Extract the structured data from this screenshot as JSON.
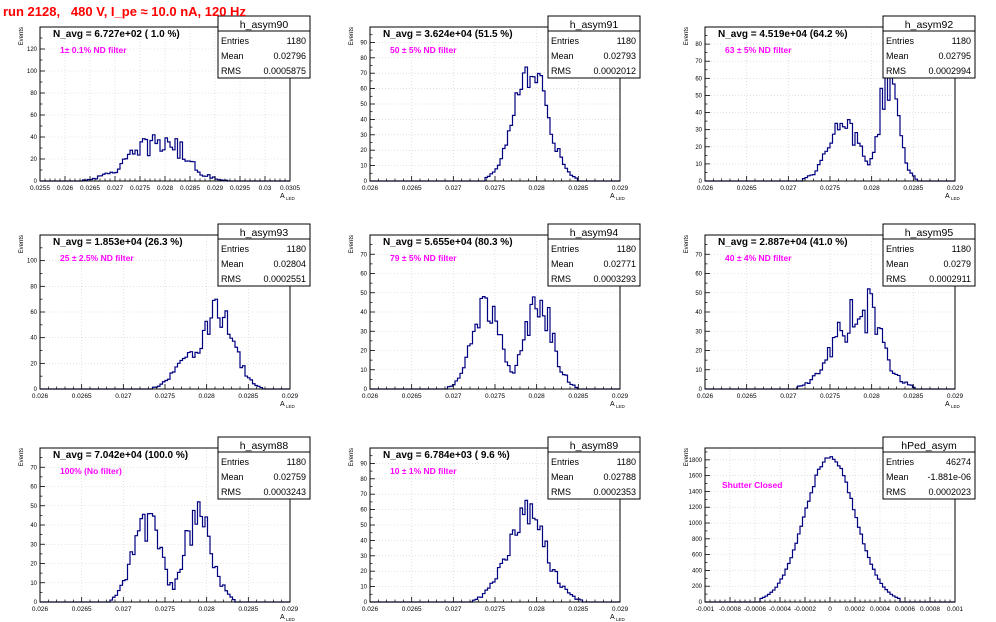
{
  "run_title": "run 2128,   480 V, I_pe ≈ 10.0 nA, 120 Hz",
  "y_axis_label": "Events",
  "stats_labels": {
    "entries": "Entries",
    "mean": "Mean",
    "rms": "RMS"
  },
  "colors": {
    "title": "#ff0000",
    "histogram": "#000080",
    "filter_label": "#ff00ff",
    "grid": "#cfcfcf",
    "frame": "#000000"
  },
  "chart_data": [
    {
      "type": "histogram",
      "name": "h_asym90",
      "n_avg_label": "N_avg = 6.727e+02 ( 1.0 %)",
      "filter_label": "1± 0.1% ND filter",
      "stats": {
        "entries": "1180",
        "mean": "0.02796",
        "rms": "0.0005875"
      },
      "xlim": [
        0.0255,
        0.0305
      ],
      "ylim": [
        0,
        140
      ],
      "x_ticks": [
        0.0255,
        0.026,
        0.0265,
        0.027,
        0.0275,
        0.028,
        0.0285,
        0.029,
        0.0295,
        0.03,
        0.0305
      ],
      "x_tick_labels": [
        "0.0255",
        "0.026",
        "0.0265",
        "0.027",
        "0.0275",
        "0.028",
        "0.0285",
        "0.029",
        "0.0295",
        "0.03",
        "0.0305"
      ],
      "y_ticks": [
        0,
        20,
        40,
        60,
        80,
        100,
        120
      ],
      "y_tick_labels": [
        "0",
        "20",
        "40",
        "60",
        "80",
        "100",
        "120"
      ],
      "xlabel": "A",
      "xlabel_sub": "LED",
      "mean": 0.02796,
      "sigma": 0.0005875,
      "peak": 42,
      "shape": "broad",
      "noise": 0.35
    },
    {
      "type": "histogram",
      "name": "h_asym91",
      "n_avg_label": "N_avg = 3.624e+04 (51.5 %)",
      "filter_label": "50 ± 5% ND filter",
      "stats": {
        "entries": "1180",
        "mean": "0.02793",
        "rms": "0.0002012"
      },
      "xlim": [
        0.026,
        0.029
      ],
      "ylim": [
        0,
        100
      ],
      "x_ticks": [
        0.026,
        0.0265,
        0.027,
        0.0275,
        0.028,
        0.0285,
        0.029
      ],
      "x_tick_labels": [
        "0.026",
        "0.0265",
        "0.027",
        "0.0275",
        "0.028",
        "0.0285",
        "0.029"
      ],
      "y_ticks": [
        0,
        10,
        20,
        30,
        40,
        50,
        60,
        70,
        80,
        90
      ],
      "y_tick_labels": [
        "0",
        "10",
        "20",
        "30",
        "40",
        "50",
        "60",
        "70",
        "80",
        "90"
      ],
      "xlabel": "A",
      "xlabel_sub": "LED",
      "mean": 0.02793,
      "sigma": 0.0002012,
      "peak": 74,
      "shape": "gauss",
      "noise": 0.18
    },
    {
      "type": "histogram",
      "name": "h_asym92",
      "n_avg_label": "N_avg = 4.519e+04 (64.2 %)",
      "filter_label": "63 ± 5% ND filter",
      "stats": {
        "entries": "1180",
        "mean": "0.02795",
        "rms": "0.0002994"
      },
      "xlim": [
        0.026,
        0.029
      ],
      "ylim": [
        0,
        90
      ],
      "x_ticks": [
        0.026,
        0.0265,
        0.027,
        0.0275,
        0.028,
        0.0285,
        0.029
      ],
      "x_tick_labels": [
        "0.026",
        "0.0265",
        "0.027",
        "0.0275",
        "0.028",
        "0.0285",
        "0.029"
      ],
      "y_ticks": [
        0,
        10,
        20,
        30,
        40,
        50,
        60,
        70,
        80
      ],
      "y_tick_labels": [
        "0",
        "10",
        "20",
        "30",
        "40",
        "50",
        "60",
        "70",
        "80"
      ],
      "xlabel": "A",
      "xlabel_sub": "LED",
      "mean": 0.02795,
      "sigma": 0.0002994,
      "peak": 66,
      "shape": "double",
      "noise": 0.25
    },
    {
      "type": "histogram",
      "name": "h_asym93",
      "n_avg_label": "N_avg = 1.853e+04 (26.3 %)",
      "filter_label": "25 ± 2.5% ND filter",
      "stats": {
        "entries": "1180",
        "mean": "0.02804",
        "rms": "0.0002551"
      },
      "xlim": [
        0.026,
        0.029
      ],
      "ylim": [
        0,
        120
      ],
      "x_ticks": [
        0.026,
        0.0265,
        0.027,
        0.0275,
        0.028,
        0.0285,
        0.029
      ],
      "x_tick_labels": [
        "0.026",
        "0.0265",
        "0.027",
        "0.0275",
        "0.028",
        "0.0285",
        "0.029"
      ],
      "y_ticks": [
        0,
        20,
        40,
        60,
        80,
        100
      ],
      "y_tick_labels": [
        "0",
        "20",
        "40",
        "60",
        "80",
        "100"
      ],
      "xlabel": "A",
      "xlabel_sub": "LED",
      "mean": 0.02804,
      "sigma": 0.0002551,
      "peak": 70,
      "shape": "skew",
      "noise": 0.2
    },
    {
      "type": "histogram",
      "name": "h_asym94",
      "n_avg_label": "N_avg = 5.655e+04 (80.3 %)",
      "filter_label": "79 ± 5% ND filter",
      "stats": {
        "entries": "1180",
        "mean": "0.02771",
        "rms": "0.0003293"
      },
      "xlim": [
        0.026,
        0.029
      ],
      "ylim": [
        0,
        80
      ],
      "x_ticks": [
        0.026,
        0.0265,
        0.027,
        0.0275,
        0.028,
        0.0285,
        0.029
      ],
      "x_tick_labels": [
        "0.026",
        "0.0265",
        "0.027",
        "0.0275",
        "0.028",
        "0.0285",
        "0.029"
      ],
      "y_ticks": [
        0,
        10,
        20,
        30,
        40,
        50,
        60,
        70
      ],
      "y_tick_labels": [
        "0",
        "10",
        "20",
        "30",
        "40",
        "50",
        "60",
        "70"
      ],
      "xlabel": "A",
      "xlabel_sub": "LED",
      "mean": 0.02771,
      "sigma": 0.0003293,
      "peak": 48,
      "shape": "double_eq",
      "noise": 0.25
    },
    {
      "type": "histogram",
      "name": "h_asym95",
      "n_avg_label": "N_avg = 2.887e+04 (41.0 %)",
      "filter_label": "40 ± 4% ND filter",
      "stats": {
        "entries": "1180",
        "mean": "0.0279",
        "rms": "0.0002911"
      },
      "xlim": [
        0.026,
        0.029
      ],
      "ylim": [
        0,
        80
      ],
      "x_ticks": [
        0.026,
        0.0265,
        0.027,
        0.0275,
        0.028,
        0.0285,
        0.029
      ],
      "x_tick_labels": [
        "0.026",
        "0.0265",
        "0.027",
        "0.0275",
        "0.028",
        "0.0285",
        "0.029"
      ],
      "y_ticks": [
        0,
        10,
        20,
        30,
        40,
        50,
        60,
        70
      ],
      "y_tick_labels": [
        "0",
        "10",
        "20",
        "30",
        "40",
        "50",
        "60",
        "70"
      ],
      "xlabel": "A",
      "xlabel_sub": "LED",
      "mean": 0.0279,
      "sigma": 0.0002911,
      "peak": 52,
      "shape": "broad",
      "noise": 0.3
    },
    {
      "type": "histogram",
      "name": "h_asym88",
      "n_avg_label": "N_avg = 7.042e+04 (100.0 %)",
      "filter_label": "100% (No filter)",
      "stats": {
        "entries": "1180",
        "mean": "0.02759",
        "rms": "0.0003243"
      },
      "xlim": [
        0.026,
        0.029
      ],
      "ylim": [
        0,
        80
      ],
      "x_ticks": [
        0.026,
        0.0265,
        0.027,
        0.0275,
        0.028,
        0.0285,
        0.029
      ],
      "x_tick_labels": [
        "0.026",
        "0.0265",
        "0.027",
        "0.0275",
        "0.028",
        "0.0285",
        "0.029"
      ],
      "y_ticks": [
        0,
        10,
        20,
        30,
        40,
        50,
        60,
        70
      ],
      "y_tick_labels": [
        "0",
        "10",
        "20",
        "30",
        "40",
        "50",
        "60",
        "70"
      ],
      "xlabel": "A",
      "xlabel_sub": "LED",
      "mean": 0.02759,
      "sigma": 0.0003243,
      "peak": 52,
      "shape": "double_eq",
      "noise": 0.25
    },
    {
      "type": "histogram",
      "name": "h_asym89",
      "n_avg_label": "N_avg = 6.784e+03 ( 9.6 %)",
      "filter_label": "10 ± 1% ND filter",
      "stats": {
        "entries": "1180",
        "mean": "0.02788",
        "rms": "0.0002353"
      },
      "xlim": [
        0.026,
        0.029
      ],
      "ylim": [
        0,
        100
      ],
      "x_ticks": [
        0.026,
        0.0265,
        0.027,
        0.0275,
        0.028,
        0.0285,
        0.029
      ],
      "x_tick_labels": [
        "0.026",
        "0.0265",
        "0.027",
        "0.0275",
        "0.028",
        "0.0285",
        "0.029"
      ],
      "y_ticks": [
        0,
        10,
        20,
        30,
        40,
        50,
        60,
        70,
        80,
        90
      ],
      "y_tick_labels": [
        "0",
        "10",
        "20",
        "30",
        "40",
        "50",
        "60",
        "70",
        "80",
        "90"
      ],
      "xlabel": "A",
      "xlabel_sub": "LED",
      "mean": 0.02788,
      "sigma": 0.0002353,
      "peak": 66,
      "shape": "gauss",
      "noise": 0.22
    },
    {
      "type": "histogram",
      "name": "hPed_asym",
      "n_avg_label": "",
      "filter_label": "Shutter Closed",
      "stats": {
        "entries": "46274",
        "mean": "-1.881e-06",
        "rms": "0.0002023"
      },
      "xlim": [
        -0.001,
        0.001
      ],
      "ylim": [
        0,
        1950
      ],
      "x_ticks": [
        -0.001,
        -0.0008,
        -0.0006,
        -0.0004,
        -0.0002,
        0,
        0.0002,
        0.0004,
        0.0006,
        0.0008,
        0.001
      ],
      "x_tick_labels": [
        "-0.001",
        "-0.0008",
        "-0.0006",
        "-0.0004",
        "-0.0002",
        "0",
        "0.0002",
        "0.0004",
        "0.0006",
        "0.0008",
        "0.001"
      ],
      "y_ticks": [
        0,
        200,
        400,
        600,
        800,
        1000,
        1200,
        1400,
        1600,
        1800
      ],
      "y_tick_labels": [
        "0",
        "200",
        "400",
        "600",
        "800",
        "1000",
        "1200",
        "1400",
        "1600",
        "1800"
      ],
      "xlabel": "",
      "xlabel_sub": "",
      "mean": 0.0,
      "sigma": 0.0002023,
      "peak": 1840,
      "shape": "gauss",
      "noise": 0.02
    }
  ]
}
